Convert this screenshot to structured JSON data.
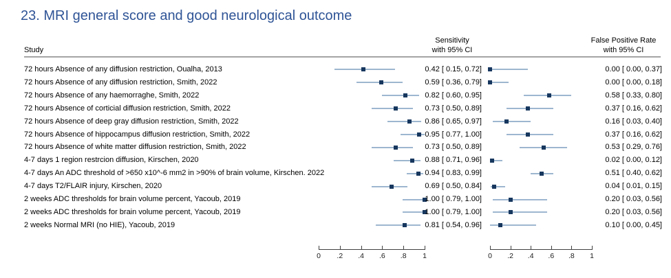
{
  "title": "23. MRI general score and good neurological outcome",
  "colors": {
    "title_blue": "#2F5496",
    "marker_navy": "#17375E",
    "ci_blue": "#9DB6CF",
    "rule_gray": "#7F7F7F",
    "axis_gray": "#404040"
  },
  "table": {
    "study_header": "Study",
    "sens_header_1": "Sensitivity",
    "sens_header_2": "with 95% CI",
    "fpr_header_1": "False Positive Rate",
    "fpr_header_2": "with 95% CI"
  },
  "axis": {
    "min": 0,
    "max": 1,
    "ticks": [
      "0",
      ".2",
      ".4",
      ".6",
      ".8",
      "1"
    ]
  },
  "rows": [
    {
      "study": "72 hours Absence of any diffusion restriction, Oualha, 2013",
      "sens": {
        "est": 0.42,
        "lo": 0.15,
        "hi": 0.72,
        "label": "0.42 [ 0.15, 0.72]"
      },
      "fpr": {
        "est": 0.0,
        "lo": 0.0,
        "hi": 0.37,
        "label": "0.00 [ 0.00, 0.37]"
      }
    },
    {
      "study": "72 hours Absence of any diffusion restriction, Smith, 2022",
      "sens": {
        "est": 0.59,
        "lo": 0.36,
        "hi": 0.79,
        "label": "0.59 [ 0.36, 0.79]"
      },
      "fpr": {
        "est": 0.0,
        "lo": 0.0,
        "hi": 0.18,
        "label": "0.00 [ 0.00, 0.18]"
      }
    },
    {
      "study": "72 hours Absence of any haemorraghe, Smith, 2022",
      "sens": {
        "est": 0.82,
        "lo": 0.6,
        "hi": 0.95,
        "label": "0.82 [ 0.60, 0.95]"
      },
      "fpr": {
        "est": 0.58,
        "lo": 0.33,
        "hi": 0.8,
        "label": "0.58 [ 0.33, 0.80]"
      }
    },
    {
      "study": "72 hours Absence of corticial diffusion restriction, Smith, 2022",
      "sens": {
        "est": 0.73,
        "lo": 0.5,
        "hi": 0.89,
        "label": "0.73 [ 0.50, 0.89]"
      },
      "fpr": {
        "est": 0.37,
        "lo": 0.16,
        "hi": 0.62,
        "label": "0.37 [ 0.16, 0.62]"
      }
    },
    {
      "study": "72 hours Absence of deep gray diffusion restriction, Smith, 2022",
      "sens": {
        "est": 0.86,
        "lo": 0.65,
        "hi": 0.97,
        "label": "0.86 [ 0.65, 0.97]"
      },
      "fpr": {
        "est": 0.16,
        "lo": 0.03,
        "hi": 0.4,
        "label": "0.16 [ 0.03, 0.40]"
      }
    },
    {
      "study": "72 hours Absence of hippocampus diffusion restriction, Smith, 2022",
      "sens": {
        "est": 0.95,
        "lo": 0.77,
        "hi": 1.0,
        "label": "0.95 [ 0.77, 1.00]"
      },
      "fpr": {
        "est": 0.37,
        "lo": 0.16,
        "hi": 0.62,
        "label": "0.37 [ 0.16, 0.62]"
      }
    },
    {
      "study": "72 hours Absence of white matter diffusion restriction, Smith, 2022",
      "sens": {
        "est": 0.73,
        "lo": 0.5,
        "hi": 0.89,
        "label": "0.73 [ 0.50, 0.89]"
      },
      "fpr": {
        "est": 0.53,
        "lo": 0.29,
        "hi": 0.76,
        "label": "0.53 [ 0.29, 0.76]"
      }
    },
    {
      "study": "4-7 days 1 region restrcion diffusion, Kirschen, 2020",
      "sens": {
        "est": 0.88,
        "lo": 0.71,
        "hi": 0.96,
        "label": "0.88 [ 0.71, 0.96]"
      },
      "fpr": {
        "est": 0.02,
        "lo": 0.0,
        "hi": 0.12,
        "label": "0.02 [ 0.00, 0.12]"
      }
    },
    {
      "study": "4-7 days An ADC threshold of >650 x10^-6 mm2 in >90% of brain volume, Kirschen. 2022",
      "sens": {
        "est": 0.94,
        "lo": 0.83,
        "hi": 0.99,
        "label": "0.94 [ 0.83, 0.99]"
      },
      "fpr": {
        "est": 0.51,
        "lo": 0.4,
        "hi": 0.62,
        "label": "0.51 [ 0.40, 0.62]"
      }
    },
    {
      "study": "4-7 days T2/FLAIR injury, Kirschen, 2020",
      "sens": {
        "est": 0.69,
        "lo": 0.5,
        "hi": 0.84,
        "label": "0.69 [ 0.50, 0.84]"
      },
      "fpr": {
        "est": 0.04,
        "lo": 0.01,
        "hi": 0.15,
        "label": "0.04 [ 0.01, 0.15]"
      }
    },
    {
      "study": "2 weeks ADC thresholds for brain volume percent, Yacoub, 2019",
      "sens": {
        "est": 1.0,
        "lo": 0.79,
        "hi": 1.0,
        "label": "1.00 [ 0.79, 1.00]"
      },
      "fpr": {
        "est": 0.2,
        "lo": 0.03,
        "hi": 0.56,
        "label": "0.20 [ 0.03, 0.56]"
      }
    },
    {
      "study": "2 weeks ADC thresholds for brain volume percent, Yacoub, 2019",
      "sens": {
        "est": 1.0,
        "lo": 0.79,
        "hi": 1.0,
        "label": "1.00 [ 0.79, 1.00]"
      },
      "fpr": {
        "est": 0.2,
        "lo": 0.03,
        "hi": 0.56,
        "label": "0.20 [ 0.03, 0.56]"
      }
    },
    {
      "study": "2 weeks Normal MRI (no HIE), Yacoub, 2019",
      "sens": {
        "est": 0.81,
        "lo": 0.54,
        "hi": 0.96,
        "label": "0.81 [ 0.54, 0.96]"
      },
      "fpr": {
        "est": 0.1,
        "lo": 0.0,
        "hi": 0.45,
        "label": "0.10 [ 0.00, 0.45]"
      }
    }
  ],
  "chart_data": [
    {
      "type": "scatter",
      "subtype": "forest-plot",
      "title": "Sensitivity with 95% CI",
      "categories": [
        "72 hours Absence of any diffusion restriction, Oualha, 2013",
        "72 hours Absence of any diffusion restriction, Smith, 2022",
        "72 hours Absence of any haemorraghe, Smith, 2022",
        "72 hours Absence of corticial diffusion restriction, Smith, 2022",
        "72 hours Absence of deep gray diffusion restriction, Smith, 2022",
        "72 hours Absence of hippocampus diffusion restriction, Smith, 2022",
        "72 hours Absence of white matter diffusion restriction, Smith, 2022",
        "4-7 days 1 region restrcion diffusion, Kirschen, 2020",
        "4-7 days An ADC threshold of >650 x10^-6 mm2 in >90% of brain volume, Kirschen. 2022",
        "4-7 days T2/FLAIR injury, Kirschen, 2020",
        "2 weeks ADC thresholds for brain volume percent, Yacoub, 2019",
        "2 weeks ADC thresholds for brain volume percent, Yacoub, 2019",
        "2 weeks Normal MRI (no HIE), Yacoub, 2019"
      ],
      "series": [
        {
          "name": "estimate",
          "values": [
            0.42,
            0.59,
            0.82,
            0.73,
            0.86,
            0.95,
            0.73,
            0.88,
            0.94,
            0.69,
            1.0,
            1.0,
            0.81
          ]
        },
        {
          "name": "ci_lower",
          "values": [
            0.15,
            0.36,
            0.6,
            0.5,
            0.65,
            0.77,
            0.5,
            0.71,
            0.83,
            0.5,
            0.79,
            0.79,
            0.54
          ]
        },
        {
          "name": "ci_upper",
          "values": [
            0.72,
            0.79,
            0.95,
            0.89,
            0.97,
            1.0,
            0.89,
            0.96,
            0.99,
            0.84,
            1.0,
            1.0,
            0.96
          ]
        }
      ],
      "xlim": [
        0,
        1
      ],
      "xticks": [
        "0",
        ".2",
        ".4",
        ".6",
        ".8",
        "1"
      ],
      "grid": false,
      "legend": false
    },
    {
      "type": "scatter",
      "subtype": "forest-plot",
      "title": "False Positive Rate with 95% CI",
      "categories": [
        "72 hours Absence of any diffusion restriction, Oualha, 2013",
        "72 hours Absence of any diffusion restriction, Smith, 2022",
        "72 hours Absence of any haemorraghe, Smith, 2022",
        "72 hours Absence of corticial diffusion restriction, Smith, 2022",
        "72 hours Absence of deep gray diffusion restriction, Smith, 2022",
        "72 hours Absence of hippocampus diffusion restriction, Smith, 2022",
        "72 hours Absence of white matter diffusion restriction, Smith, 2022",
        "4-7 days 1 region restrcion diffusion, Kirschen, 2020",
        "4-7 days An ADC threshold of >650 x10^-6 mm2 in >90% of brain volume, Kirschen. 2022",
        "4-7 days T2/FLAIR injury, Kirschen, 2020",
        "2 weeks ADC thresholds for brain volume percent, Yacoub, 2019",
        "2 weeks ADC thresholds for brain volume percent, Yacoub, 2019",
        "2 weeks Normal MRI (no HIE), Yacoub, 2019"
      ],
      "series": [
        {
          "name": "estimate",
          "values": [
            0.0,
            0.0,
            0.58,
            0.37,
            0.16,
            0.37,
            0.53,
            0.02,
            0.51,
            0.04,
            0.2,
            0.2,
            0.1
          ]
        },
        {
          "name": "ci_lower",
          "values": [
            0.0,
            0.0,
            0.33,
            0.16,
            0.03,
            0.16,
            0.29,
            0.0,
            0.4,
            0.01,
            0.03,
            0.03,
            0.0
          ]
        },
        {
          "name": "ci_upper",
          "values": [
            0.37,
            0.18,
            0.8,
            0.62,
            0.4,
            0.62,
            0.76,
            0.12,
            0.62,
            0.15,
            0.56,
            0.56,
            0.45
          ]
        }
      ],
      "xlim": [
        0,
        1
      ],
      "xticks": [
        "0",
        ".2",
        ".4",
        ".6",
        ".8",
        "1"
      ],
      "grid": false,
      "legend": false
    }
  ]
}
